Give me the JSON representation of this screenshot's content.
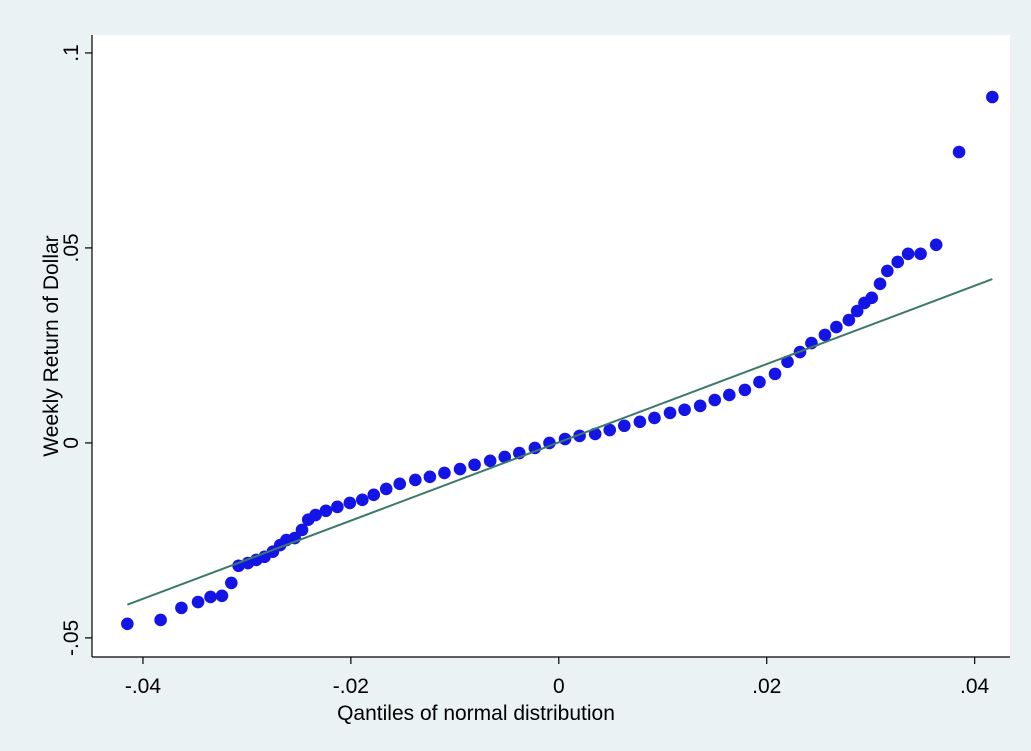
{
  "chart_data": {
    "type": "scatter",
    "x_label": "Qantiles of normal distribution",
    "y_label": "Weekly Return of  Dollar",
    "xlim": [
      -0.0449,
      0.0434
    ],
    "ylim": [
      -0.0549,
      0.1046
    ],
    "xticks": [
      {
        "value": -0.04,
        "label": "-.04"
      },
      {
        "value": -0.02,
        "label": "-.02"
      },
      0,
      {
        "value": 0.02,
        "label": ".02"
      },
      {
        "value": 0.04,
        "label": ".04"
      }
    ],
    "yticks": [
      {
        "value": -0.05,
        "label": "-.05"
      },
      0,
      {
        "value": 0.05,
        "label": ".05"
      },
      {
        "value": 0.1,
        "label": ".1"
      }
    ],
    "color": "#1414e6",
    "x": [
      -0.0415,
      -0.0383,
      -0.0363,
      -0.0347,
      -0.0335,
      -0.0324,
      -0.0315,
      -0.0308,
      -0.0299,
      -0.0291,
      -0.0283,
      -0.0275,
      -0.0268,
      -0.0262,
      -0.0254,
      -0.0247,
      -0.0241,
      -0.0234,
      -0.0224,
      -0.0213,
      -0.0201,
      -0.0189,
      -0.0178,
      -0.0166,
      -0.0153,
      -0.0138,
      -0.0124,
      -0.011,
      -0.0095,
      -0.0081,
      -0.0066,
      -0.0052,
      -0.0038,
      -0.0023,
      -0.0009,
      0.0006,
      0.002,
      0.0035,
      0.0049,
      0.0063,
      0.0078,
      0.0092,
      0.0107,
      0.0121,
      0.0136,
      0.015,
      0.0164,
      0.0179,
      0.0193,
      0.0208,
      0.022,
      0.0232,
      0.0243,
      0.0256,
      0.0267,
      0.0279,
      0.0287,
      0.0294,
      0.0301,
      0.0309,
      0.0316,
      0.0326,
      0.0336,
      0.0348,
      0.0363,
      0.0385,
      0.0417
    ],
    "values": [
      -0.0464,
      -0.0454,
      -0.0423,
      -0.0408,
      -0.0395,
      -0.0392,
      -0.0359,
      -0.0315,
      -0.0308,
      -0.03,
      -0.0292,
      -0.0279,
      -0.0262,
      -0.0249,
      -0.0244,
      -0.0223,
      -0.0197,
      -0.0185,
      -0.0174,
      -0.0164,
      -0.0154,
      -0.0146,
      -0.0133,
      -0.0118,
      -0.0105,
      -0.0095,
      -0.0087,
      -0.0077,
      -0.0067,
      -0.0056,
      -0.0046,
      -0.0036,
      -0.0026,
      -0.0013,
      0,
      0.001,
      0.0018,
      0.0023,
      0.0033,
      0.0044,
      0.0054,
      0.0064,
      0.0077,
      0.0085,
      0.0095,
      0.011,
      0.0123,
      0.0136,
      0.0156,
      0.0177,
      0.0208,
      0.0233,
      0.0256,
      0.0277,
      0.0297,
      0.0315,
      0.0338,
      0.0359,
      0.0372,
      0.0408,
      0.0441,
      0.0464,
      0.0485,
      0.0485,
      0.0508,
      0.0746,
      0.0887
    ],
    "reference_line": {
      "x": [
        -0.0415,
        0.0417
      ],
      "values": [
        -0.0415,
        0.042
      ],
      "color": "#3b7a68"
    }
  }
}
